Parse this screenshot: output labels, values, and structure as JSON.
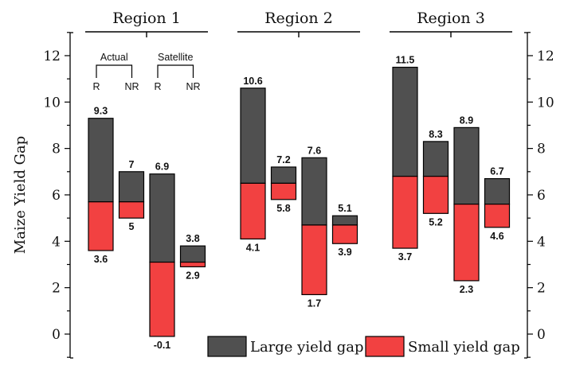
{
  "chart_data": {
    "type": "bar",
    "subtype": "floating-stacked-range",
    "ylabel": "Maize Yield Gap",
    "ylim": [
      -1,
      13
    ],
    "yticks": [
      0,
      2,
      4,
      6,
      8,
      10,
      12
    ],
    "yticks_minor_step": 1,
    "right_axis": true,
    "groups": [
      "Region 1",
      "Region 2",
      "Region 3"
    ],
    "group_annotations": {
      "group": "Region 1",
      "brackets": [
        {
          "label": "Actual",
          "left": "R",
          "right": "NR"
        },
        {
          "label": "Satellite",
          "left": "R",
          "right": "NR"
        }
      ]
    },
    "categories": [
      "Actual R",
      "Actual NR",
      "Satellite R",
      "Satellite NR"
    ],
    "series": [
      {
        "name": "Large yield gap",
        "color": "#505050"
      },
      {
        "name": "Small yield gap",
        "color": "#f24141"
      }
    ],
    "bars": [
      {
        "group": "Region 1",
        "category": "Actual R",
        "top": 9.3,
        "split": 5.7,
        "bottom": 3.6,
        "top_label": "9.3",
        "bottom_label": "3.6"
      },
      {
        "group": "Region 1",
        "category": "Actual NR",
        "top": 7.0,
        "split": 5.7,
        "bottom": 5.0,
        "top_label": "7",
        "bottom_label": "5"
      },
      {
        "group": "Region 1",
        "category": "Satellite R",
        "top": 6.9,
        "split": 3.1,
        "bottom": -0.1,
        "top_label": "6.9",
        "bottom_label": "-0.1"
      },
      {
        "group": "Region 1",
        "category": "Satellite NR",
        "top": 3.8,
        "split": 3.1,
        "bottom": 2.9,
        "top_label": "3.8",
        "bottom_label": "2.9"
      },
      {
        "group": "Region 2",
        "category": "Actual R",
        "top": 10.6,
        "split": 6.5,
        "bottom": 4.1,
        "top_label": "10.6",
        "bottom_label": "4.1"
      },
      {
        "group": "Region 2",
        "category": "Actual NR",
        "top": 7.2,
        "split": 6.5,
        "bottom": 5.8,
        "top_label": "7.2",
        "bottom_label": "5.8"
      },
      {
        "group": "Region 2",
        "category": "Satellite R",
        "top": 7.6,
        "split": 4.7,
        "bottom": 1.7,
        "top_label": "7.6",
        "bottom_label": "1.7"
      },
      {
        "group": "Region 2",
        "category": "Satellite NR",
        "top": 5.1,
        "split": 4.7,
        "bottom": 3.9,
        "top_label": "5.1",
        "bottom_label": "3.9"
      },
      {
        "group": "Region 3",
        "category": "Actual R",
        "top": 11.5,
        "split": 6.8,
        "bottom": 3.7,
        "top_label": "11.5",
        "bottom_label": "3.7"
      },
      {
        "group": "Region 3",
        "category": "Actual NR",
        "top": 8.3,
        "split": 6.8,
        "bottom": 5.2,
        "top_label": "8.3",
        "bottom_label": "5.2"
      },
      {
        "group": "Region 3",
        "category": "Satellite R",
        "top": 8.9,
        "split": 5.6,
        "bottom": 2.3,
        "top_label": "8.9",
        "bottom_label": "2.3"
      },
      {
        "group": "Region 3",
        "category": "Satellite NR",
        "top": 6.7,
        "split": 5.6,
        "bottom": 4.6,
        "top_label": "6.7",
        "bottom_label": "4.6"
      }
    ],
    "legend": {
      "position": "bottom-right",
      "entries": [
        "Large yield gap",
        "Small yield gap"
      ]
    },
    "grid": false
  }
}
